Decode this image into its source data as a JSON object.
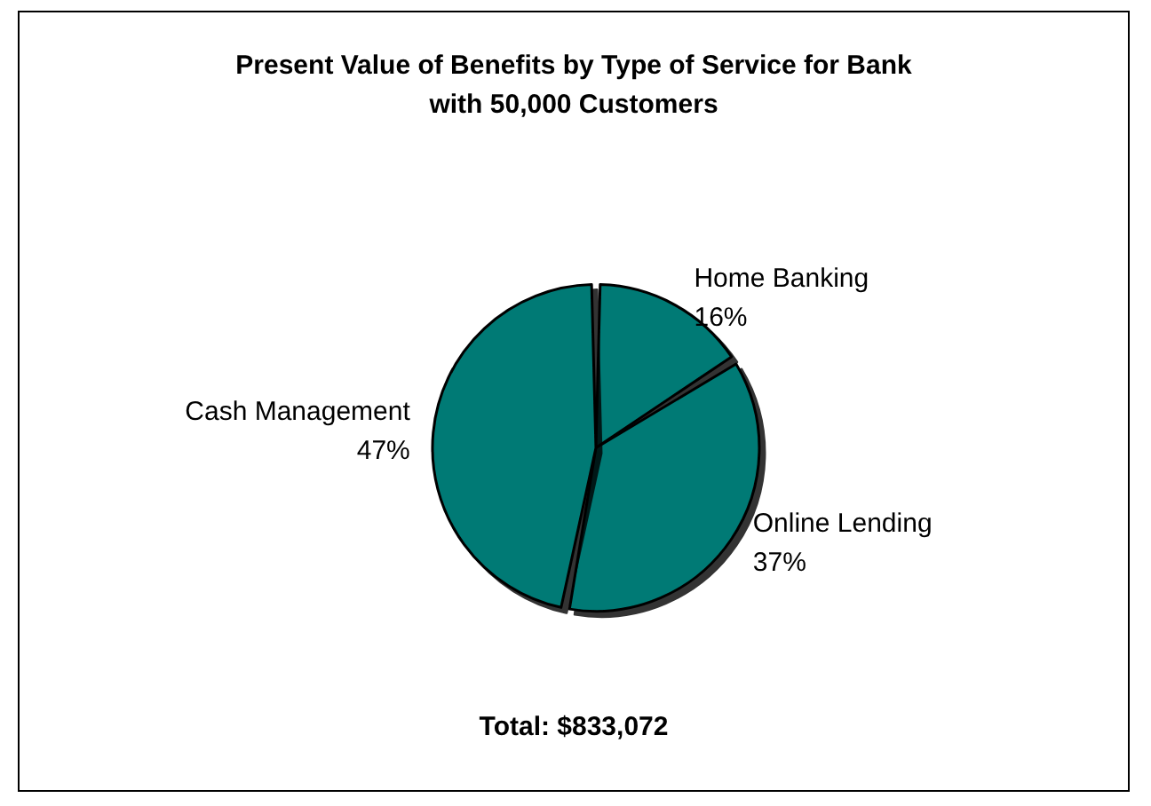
{
  "chart_data": {
    "type": "pie",
    "title": "Present Value of Benefits by Type of Service for Bank\nwith 50,000 Customers",
    "categories": [
      "Home Banking",
      "Online Lending",
      "Cash Management"
    ],
    "values": [
      16,
      37,
      47
    ],
    "value_labels": [
      "16%",
      "37%",
      "47%"
    ],
    "colors": [
      "#007a74",
      "#007a74",
      "#007a74"
    ],
    "annotations": [
      "Total: $833,072"
    ],
    "legend": false
  }
}
